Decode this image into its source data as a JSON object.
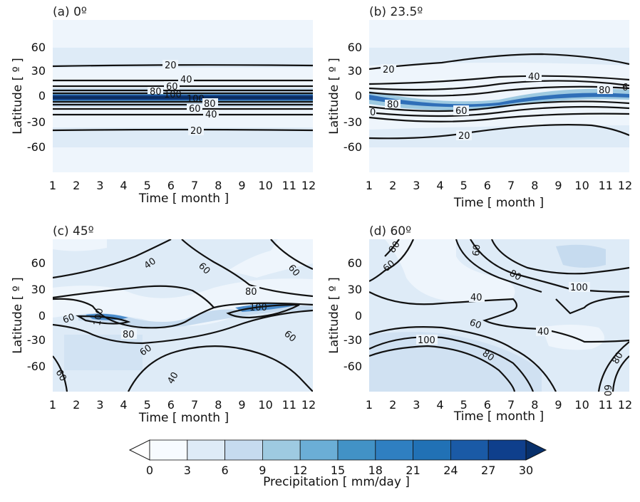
{
  "chart_data": {
    "type": "contour",
    "panels": [
      {
        "title": "(a) 0º",
        "xlabel": "Time [ month ]",
        "ylabel": "Latitude [ º ]",
        "x_ticks": [
          "1",
          "2",
          "3",
          "4",
          "5",
          "6",
          "7",
          "8",
          "9",
          "10",
          "11",
          "12"
        ],
        "y_ticks": [
          "60",
          "30",
          "0",
          "-30",
          "-60"
        ],
        "xlim": [
          1,
          12
        ],
        "ylim": [
          -90,
          90
        ],
        "contour_labels": [
          "20",
          "40",
          "60",
          "80",
          "100",
          "100",
          "80",
          "60",
          "40",
          "20"
        ]
      },
      {
        "title": "(b) 23.5º",
        "xlabel": "Time [ month ]",
        "ylabel": "Latitude [ º ]",
        "x_ticks": [
          "1",
          "2",
          "3",
          "4",
          "5",
          "6",
          "7",
          "8",
          "9",
          "10",
          "11",
          "12"
        ],
        "y_ticks": [
          "60",
          "30",
          "0",
          "-30",
          "-60"
        ],
        "xlim": [
          1,
          12
        ],
        "ylim": [
          -90,
          90
        ],
        "contour_labels": [
          "20",
          "40",
          "80",
          "6",
          "0",
          "80",
          "60",
          "20"
        ]
      },
      {
        "title": "(c) 45º",
        "xlabel": "Time [ month ]",
        "ylabel": "Latitude [ º ]",
        "x_ticks": [
          "1",
          "2",
          "3",
          "4",
          "5",
          "6",
          "7",
          "8",
          "9",
          "10",
          "11",
          "12"
        ],
        "y_ticks": [
          "60",
          "30",
          "0",
          "-30",
          "-60"
        ],
        "xlim": [
          1,
          12
        ],
        "ylim": [
          -90,
          90
        ],
        "contour_labels": [
          "40",
          "60",
          "60",
          "80",
          "100",
          "60",
          "100",
          "80",
          "60",
          "60",
          "40",
          "60"
        ]
      },
      {
        "title": "(d) 60º",
        "xlabel": "Time [ month ]",
        "ylabel": "Latitude [ º ]",
        "x_ticks": [
          "1",
          "2",
          "3",
          "4",
          "5",
          "6",
          "7",
          "8",
          "9",
          "10",
          "11",
          "12"
        ],
        "y_ticks": [
          "60",
          "30",
          "0",
          "-30",
          "-60"
        ],
        "xlim": [
          1,
          12
        ],
        "ylim": [
          -90,
          90
        ],
        "contour_labels": [
          "80",
          "60",
          "60",
          "80",
          "100",
          "40",
          "60",
          "40",
          "100",
          "80",
          "60",
          "80"
        ]
      }
    ],
    "colorbar": {
      "label": "Precipitation [ mm/day ]",
      "ticks": [
        "0",
        "3",
        "6",
        "9",
        "12",
        "15",
        "18",
        "21",
        "24",
        "27",
        "30"
      ],
      "colors": [
        "#f7fbff",
        "#deebf7",
        "#c6dbef",
        "#9ecae1",
        "#6baed6",
        "#4292c6",
        "#2f7fc1",
        "#2171b5",
        "#1a5aa6",
        "#0f3f8c",
        "#08306b"
      ]
    }
  }
}
